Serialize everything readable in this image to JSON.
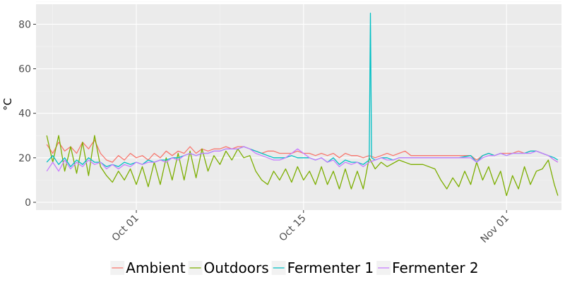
{
  "chart_data": {
    "type": "line",
    "ylabel": "°C",
    "xlabel": "",
    "title": "",
    "x_ticks": [
      "Oct 01",
      "Oct 15",
      "Nov 01"
    ],
    "x_tick_days": [
      8,
      22,
      39
    ],
    "y_ticks": [
      0,
      20,
      40,
      60,
      80
    ],
    "ylim": [
      -3.5,
      89
    ],
    "xlim_days": [
      -0.4,
      43.6
    ],
    "x_date_origin": "2016-09-23",
    "grid": true,
    "legend_position": "bottom",
    "series": [
      {
        "name": "Ambient",
        "color": "#F8766D",
        "points": [
          [
            0.5,
            26
          ],
          [
            1.0,
            22
          ],
          [
            1.5,
            27
          ],
          [
            2.0,
            23
          ],
          [
            2.5,
            25
          ],
          [
            3.0,
            22
          ],
          [
            3.5,
            27
          ],
          [
            4.0,
            24
          ],
          [
            4.5,
            28
          ],
          [
            5.0,
            22
          ],
          [
            5.5,
            19
          ],
          [
            6.0,
            18
          ],
          [
            6.5,
            21
          ],
          [
            7.0,
            19
          ],
          [
            7.5,
            22
          ],
          [
            8.0,
            20
          ],
          [
            8.5,
            21
          ],
          [
            9.0,
            19
          ],
          [
            9.5,
            22
          ],
          [
            10.0,
            20
          ],
          [
            10.5,
            23
          ],
          [
            11.0,
            21
          ],
          [
            11.5,
            23
          ],
          [
            12.0,
            22
          ],
          [
            12.5,
            25
          ],
          [
            13.0,
            22
          ],
          [
            13.5,
            24
          ],
          [
            14.0,
            23
          ],
          [
            14.5,
            24
          ],
          [
            15.0,
            24
          ],
          [
            15.5,
            25
          ],
          [
            16.0,
            24
          ],
          [
            16.5,
            25
          ],
          [
            17.0,
            25
          ],
          [
            17.5,
            24
          ],
          [
            18.0,
            23
          ],
          [
            18.5,
            22
          ],
          [
            19.0,
            23
          ],
          [
            19.5,
            23
          ],
          [
            20.0,
            22
          ],
          [
            20.5,
            22
          ],
          [
            21.0,
            22
          ],
          [
            21.5,
            23
          ],
          [
            22.0,
            22
          ],
          [
            22.5,
            22
          ],
          [
            23.0,
            21
          ],
          [
            23.5,
            22
          ],
          [
            24.0,
            21
          ],
          [
            24.5,
            22
          ],
          [
            25.0,
            20
          ],
          [
            25.5,
            22
          ],
          [
            26.0,
            21
          ],
          [
            26.5,
            21
          ],
          [
            27.0,
            20
          ],
          [
            27.5,
            21
          ],
          [
            28.0,
            20
          ],
          [
            28.5,
            21
          ],
          [
            29.0,
            22
          ],
          [
            29.5,
            21
          ],
          [
            30.0,
            22
          ],
          [
            30.5,
            23
          ],
          [
            31.0,
            21
          ],
          [
            31.5,
            21
          ],
          [
            32.0,
            21
          ],
          [
            33.0,
            21
          ],
          [
            34.0,
            21
          ],
          [
            35.0,
            21
          ],
          [
            36.0,
            21
          ],
          [
            36.5,
            19
          ],
          [
            37.0,
            21
          ],
          [
            37.5,
            22
          ],
          [
            38.0,
            21
          ],
          [
            38.5,
            22
          ],
          [
            39.0,
            22
          ],
          [
            39.5,
            22
          ],
          [
            40.0,
            23
          ],
          [
            40.5,
            22
          ],
          [
            41.0,
            23
          ],
          [
            41.5,
            23
          ],
          [
            42.0,
            22
          ],
          [
            42.5,
            21
          ],
          [
            43.0,
            19
          ],
          [
            43.3,
            18
          ]
        ]
      },
      {
        "name": "Outdoors",
        "color": "#7CAE00",
        "points": [
          [
            0.5,
            30
          ],
          [
            1.0,
            18
          ],
          [
            1.5,
            30
          ],
          [
            2.0,
            14
          ],
          [
            2.5,
            25
          ],
          [
            3.0,
            13
          ],
          [
            3.5,
            27
          ],
          [
            4.0,
            12
          ],
          [
            4.5,
            30
          ],
          [
            5.0,
            16
          ],
          [
            5.5,
            12
          ],
          [
            6.0,
            9
          ],
          [
            6.5,
            14
          ],
          [
            7.0,
            10
          ],
          [
            7.5,
            15
          ],
          [
            8.0,
            8
          ],
          [
            8.5,
            16
          ],
          [
            9.0,
            7
          ],
          [
            9.5,
            18
          ],
          [
            10.0,
            8
          ],
          [
            10.5,
            20
          ],
          [
            11.0,
            10
          ],
          [
            11.5,
            22
          ],
          [
            12.0,
            10
          ],
          [
            12.5,
            23
          ],
          [
            13.0,
            11
          ],
          [
            13.5,
            24
          ],
          [
            14.0,
            14
          ],
          [
            14.5,
            21
          ],
          [
            15.0,
            17
          ],
          [
            15.5,
            23
          ],
          [
            16.0,
            19
          ],
          [
            16.5,
            24
          ],
          [
            17.0,
            20
          ],
          [
            17.5,
            21
          ],
          [
            18.0,
            14
          ],
          [
            18.5,
            10
          ],
          [
            19.0,
            8
          ],
          [
            19.5,
            14
          ],
          [
            20.0,
            10
          ],
          [
            20.5,
            15
          ],
          [
            21.0,
            9
          ],
          [
            21.5,
            16
          ],
          [
            22.0,
            10
          ],
          [
            22.5,
            14
          ],
          [
            23.0,
            8
          ],
          [
            23.5,
            16
          ],
          [
            24.0,
            8
          ],
          [
            24.5,
            14
          ],
          [
            25.0,
            6
          ],
          [
            25.5,
            15
          ],
          [
            26.0,
            6
          ],
          [
            26.5,
            14
          ],
          [
            27.0,
            6
          ],
          [
            27.5,
            20
          ],
          [
            28.0,
            15
          ],
          [
            28.5,
            18
          ],
          [
            29.0,
            16
          ],
          [
            30.0,
            19
          ],
          [
            31.0,
            17
          ],
          [
            32.0,
            17
          ],
          [
            33.0,
            15
          ],
          [
            33.5,
            10
          ],
          [
            34.0,
            6
          ],
          [
            34.5,
            11
          ],
          [
            35.0,
            7
          ],
          [
            35.5,
            14
          ],
          [
            36.0,
            8
          ],
          [
            36.5,
            18
          ],
          [
            37.0,
            10
          ],
          [
            37.5,
            16
          ],
          [
            38.0,
            8
          ],
          [
            38.5,
            14
          ],
          [
            39.0,
            3
          ],
          [
            39.5,
            12
          ],
          [
            40.0,
            6
          ],
          [
            40.5,
            16
          ],
          [
            41.0,
            8
          ],
          [
            41.5,
            14
          ],
          [
            42.0,
            15
          ],
          [
            42.5,
            19
          ],
          [
            43.0,
            8
          ],
          [
            43.3,
            3
          ]
        ]
      },
      {
        "name": "Fermenter 1",
        "color": "#00BFC4",
        "points": [
          [
            0.5,
            18
          ],
          [
            1.0,
            21
          ],
          [
            1.5,
            17
          ],
          [
            2.0,
            20
          ],
          [
            2.5,
            16
          ],
          [
            3.0,
            19
          ],
          [
            3.5,
            17
          ],
          [
            4.0,
            20
          ],
          [
            4.5,
            18
          ],
          [
            5.0,
            18
          ],
          [
            5.5,
            16
          ],
          [
            6.0,
            17
          ],
          [
            6.5,
            16
          ],
          [
            7.0,
            18
          ],
          [
            7.5,
            17
          ],
          [
            8.0,
            18
          ],
          [
            8.5,
            17
          ],
          [
            9.0,
            19
          ],
          [
            9.5,
            18
          ],
          [
            10.0,
            19
          ],
          [
            10.5,
            19
          ],
          [
            11.0,
            20
          ],
          [
            11.5,
            20
          ],
          [
            12.0,
            21
          ],
          [
            12.5,
            22
          ],
          [
            13.0,
            21
          ],
          [
            13.5,
            22
          ],
          [
            14.0,
            22
          ],
          [
            14.5,
            23
          ],
          [
            15.0,
            23
          ],
          [
            15.5,
            24
          ],
          [
            16.0,
            24
          ],
          [
            16.5,
            24
          ],
          [
            17.0,
            25
          ],
          [
            17.5,
            24
          ],
          [
            18.0,
            23
          ],
          [
            18.5,
            22
          ],
          [
            19.0,
            21
          ],
          [
            19.5,
            20
          ],
          [
            20.0,
            20
          ],
          [
            20.5,
            20
          ],
          [
            21.0,
            21
          ],
          [
            21.5,
            20
          ],
          [
            22.0,
            20
          ],
          [
            22.5,
            20
          ],
          [
            23.0,
            19
          ],
          [
            23.5,
            20
          ],
          [
            24.0,
            18
          ],
          [
            24.5,
            20
          ],
          [
            25.0,
            17
          ],
          [
            25.5,
            19
          ],
          [
            26.0,
            18
          ],
          [
            26.5,
            18
          ],
          [
            27.0,
            17
          ],
          [
            27.5,
            19
          ],
          [
            27.6,
            85
          ],
          [
            27.7,
            20
          ],
          [
            28.0,
            19
          ],
          [
            28.5,
            20
          ],
          [
            29.0,
            20
          ],
          [
            29.5,
            19
          ],
          [
            30.0,
            20
          ],
          [
            31.0,
            20
          ],
          [
            32.0,
            20
          ],
          [
            33.0,
            20
          ],
          [
            34.0,
            20
          ],
          [
            35.0,
            20
          ],
          [
            36.0,
            21
          ],
          [
            36.5,
            18
          ],
          [
            37.0,
            21
          ],
          [
            37.5,
            22
          ],
          [
            38.0,
            21
          ],
          [
            38.5,
            22
          ],
          [
            39.0,
            21
          ],
          [
            39.5,
            22
          ],
          [
            40.0,
            22
          ],
          [
            40.5,
            22
          ],
          [
            41.0,
            23
          ],
          [
            41.5,
            23
          ],
          [
            42.0,
            22
          ],
          [
            42.5,
            21
          ],
          [
            43.0,
            20
          ],
          [
            43.3,
            19
          ]
        ]
      },
      {
        "name": "Fermenter 2",
        "color": "#C77CFF",
        "points": [
          [
            0.5,
            14
          ],
          [
            1.0,
            18
          ],
          [
            1.5,
            14
          ],
          [
            2.0,
            19
          ],
          [
            2.5,
            15
          ],
          [
            3.0,
            18
          ],
          [
            3.5,
            16
          ],
          [
            4.0,
            19
          ],
          [
            4.5,
            17
          ],
          [
            5.0,
            18
          ],
          [
            5.5,
            15
          ],
          [
            6.0,
            17
          ],
          [
            6.5,
            15
          ],
          [
            7.0,
            17
          ],
          [
            7.5,
            16
          ],
          [
            8.0,
            18
          ],
          [
            8.5,
            17
          ],
          [
            9.0,
            18
          ],
          [
            9.5,
            18
          ],
          [
            10.0,
            19
          ],
          [
            10.5,
            18
          ],
          [
            11.0,
            20
          ],
          [
            11.5,
            19
          ],
          [
            12.0,
            21
          ],
          [
            12.5,
            22
          ],
          [
            13.0,
            21
          ],
          [
            13.5,
            22
          ],
          [
            14.0,
            22
          ],
          [
            14.5,
            23
          ],
          [
            15.0,
            23
          ],
          [
            15.5,
            24
          ],
          [
            16.0,
            24
          ],
          [
            16.5,
            24
          ],
          [
            17.0,
            25
          ],
          [
            17.5,
            24
          ],
          [
            18.0,
            22
          ],
          [
            18.5,
            21
          ],
          [
            19.0,
            20
          ],
          [
            19.5,
            19
          ],
          [
            20.0,
            19
          ],
          [
            20.5,
            20
          ],
          [
            21.0,
            22
          ],
          [
            21.5,
            24
          ],
          [
            22.0,
            22
          ],
          [
            22.5,
            20
          ],
          [
            23.0,
            19
          ],
          [
            23.5,
            20
          ],
          [
            24.0,
            18
          ],
          [
            24.5,
            19
          ],
          [
            25.0,
            16
          ],
          [
            25.5,
            18
          ],
          [
            26.0,
            17
          ],
          [
            26.5,
            18
          ],
          [
            27.0,
            16
          ],
          [
            27.5,
            18
          ],
          [
            28.0,
            19
          ],
          [
            28.5,
            20
          ],
          [
            29.0,
            19
          ],
          [
            29.5,
            19
          ],
          [
            30.0,
            20
          ],
          [
            31.0,
            20
          ],
          [
            32.0,
            20
          ],
          [
            33.0,
            20
          ],
          [
            34.0,
            20
          ],
          [
            35.0,
            20
          ],
          [
            36.0,
            20
          ],
          [
            36.5,
            18
          ],
          [
            37.0,
            20
          ],
          [
            37.5,
            21
          ],
          [
            38.0,
            21
          ],
          [
            38.5,
            22
          ],
          [
            39.0,
            21
          ],
          [
            39.5,
            22
          ],
          [
            40.0,
            22
          ],
          [
            40.5,
            22
          ],
          [
            41.0,
            22
          ],
          [
            41.5,
            23
          ],
          [
            42.0,
            22
          ],
          [
            42.5,
            21
          ],
          [
            43.0,
            19
          ],
          [
            43.3,
            18
          ]
        ]
      }
    ]
  }
}
